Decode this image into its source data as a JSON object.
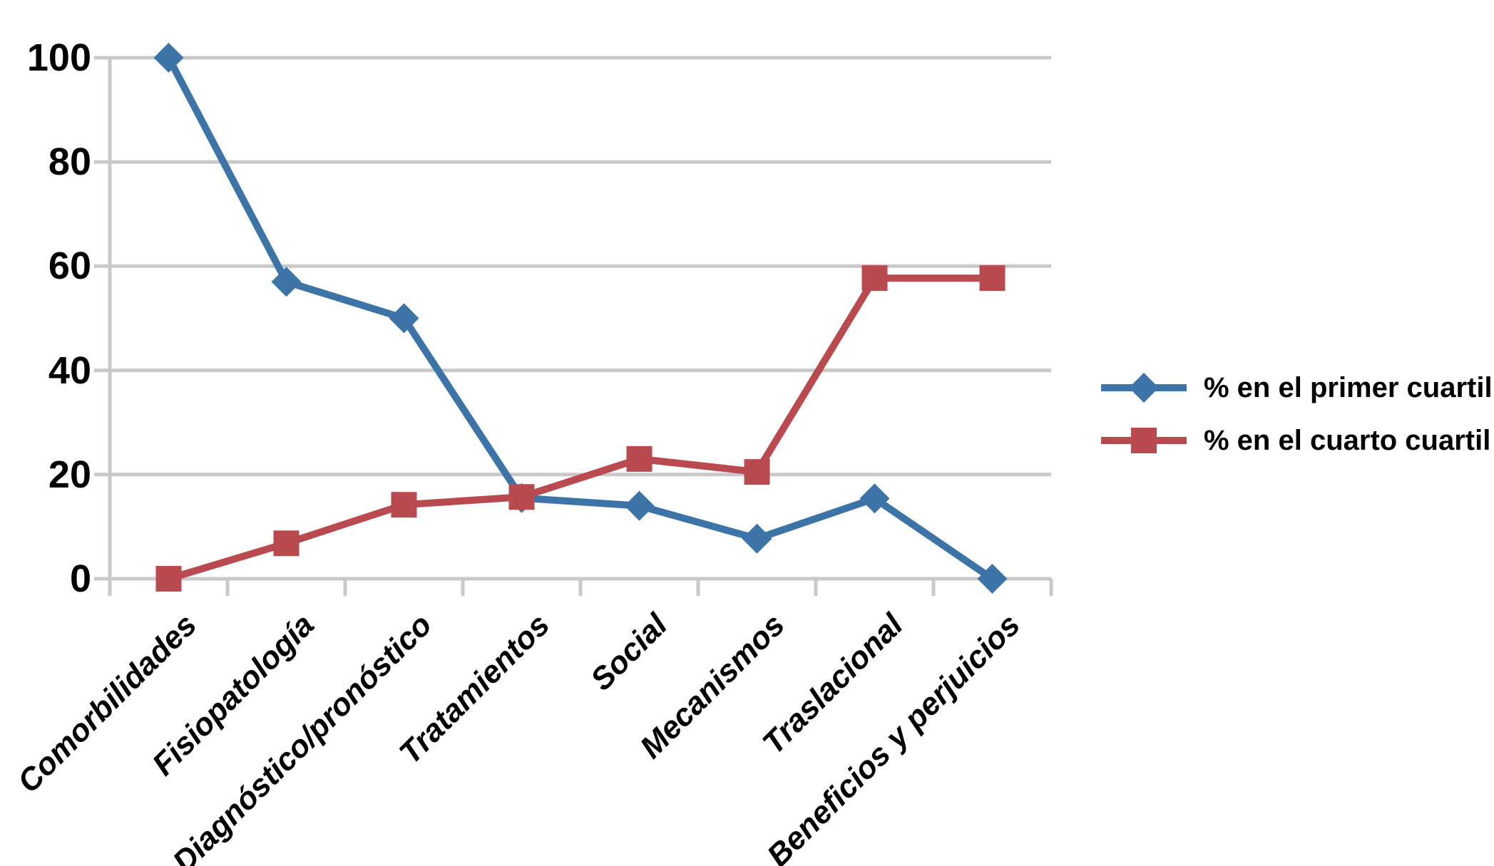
{
  "chart_data": {
    "type": "line",
    "title": "",
    "xlabel": "",
    "ylabel": "",
    "categories": [
      "Comorbilidades",
      "Fisiopatología",
      "Diagnóstico/pronóstico",
      "Tratamientos",
      "Social",
      "Mecanismos",
      "Traslacional",
      "Beneficios y perjuicios"
    ],
    "series": [
      {
        "name": "% en el primer cuartil",
        "marker": "diamond",
        "color": "#3D74A8",
        "values": [
          100,
          57,
          50,
          15.5,
          14,
          7.7,
          15.4,
          0
        ]
      },
      {
        "name": "% en el cuarto cuartil",
        "marker": "square",
        "color": "#B94A4F",
        "values": [
          0,
          6.8,
          14.2,
          15.7,
          23,
          20.5,
          57.7,
          57.7
        ]
      }
    ],
    "ylim": [
      0,
      100
    ],
    "y_ticks": [
      0,
      20,
      40,
      60,
      80,
      100
    ],
    "grid": true,
    "gridline_color": "#C9C9C9",
    "axis_color": "#C9C9C9",
    "text_color": "#000000",
    "legend_position": "right"
  }
}
